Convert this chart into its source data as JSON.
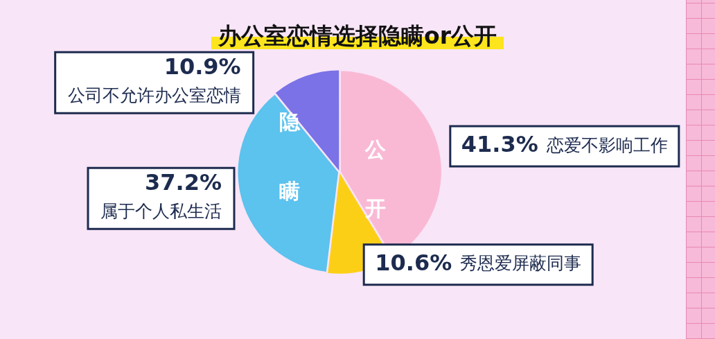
{
  "chart_data": {
    "type": "pie",
    "title": "办公室恋情选择隐瞒or公开",
    "categories": [
      "恋爱不影响工作",
      "秀恩爱屏蔽同事",
      "属于个人私生活",
      "公司不允许办公室恋情"
    ],
    "values": [
      41.3,
      10.6,
      37.2,
      10.9
    ],
    "value_labels": [
      "41.3%",
      "10.6%",
      "37.2%",
      "10.9%"
    ],
    "colors": [
      "#f9b9d5",
      "#fccf17",
      "#5cc2ee",
      "#7a72e6"
    ],
    "annotations": [
      "公开",
      "隐瞒"
    ],
    "legend": false
  }
}
